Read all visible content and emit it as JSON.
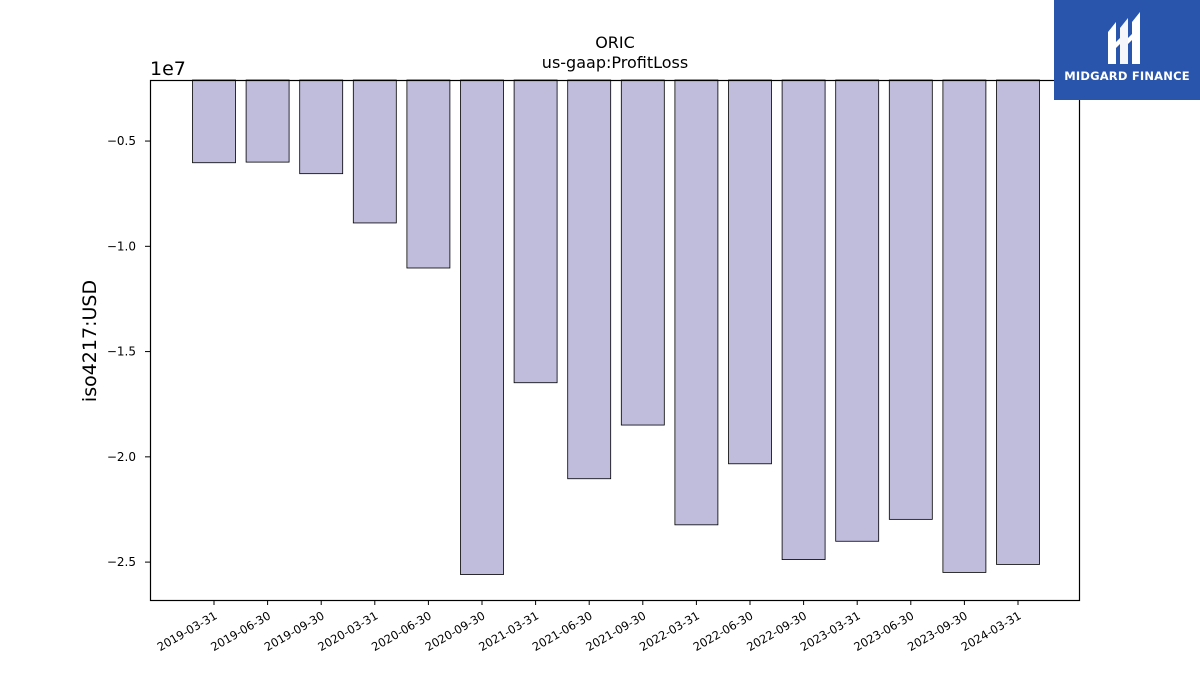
{
  "chart_data": {
    "type": "bar",
    "title": "ORIC",
    "subtitle": "us-gaap:ProfitLoss",
    "xlabel": "",
    "ylabel": "iso4217:USD",
    "offset_label": "1e7",
    "categories": [
      "2019-03-31",
      "2019-06-30",
      "2019-09-30",
      "2020-03-31",
      "2020-06-30",
      "2020-09-30",
      "2021-03-31",
      "2021-06-30",
      "2021-09-30",
      "2022-03-31",
      "2022-06-30",
      "2022-09-30",
      "2023-03-31",
      "2023-06-30",
      "2023-09-30",
      "2024-03-31"
    ],
    "values": [
      -6030000,
      -6000000,
      -6550000,
      -8890000,
      -11030000,
      -25590000,
      -16480000,
      -21040000,
      -18490000,
      -23230000,
      -20330000,
      -24880000,
      -24010000,
      -22970000,
      -25490000,
      -25110000
    ],
    "yticks": [
      -5000000,
      -10000000,
      -15000000,
      -20000000,
      -25000000
    ],
    "ytick_labels": [
      "−0.5",
      "−1.0",
      "−1.5",
      "−2.0",
      "−2.5"
    ],
    "ylim": [
      -26800000,
      -2100000
    ],
    "grid": false,
    "bar_color": "#bfbcdc",
    "bar_edge_color": "#000000"
  },
  "logo": {
    "text": "MIDGARD FINANCE",
    "color": "#2a55ad"
  }
}
